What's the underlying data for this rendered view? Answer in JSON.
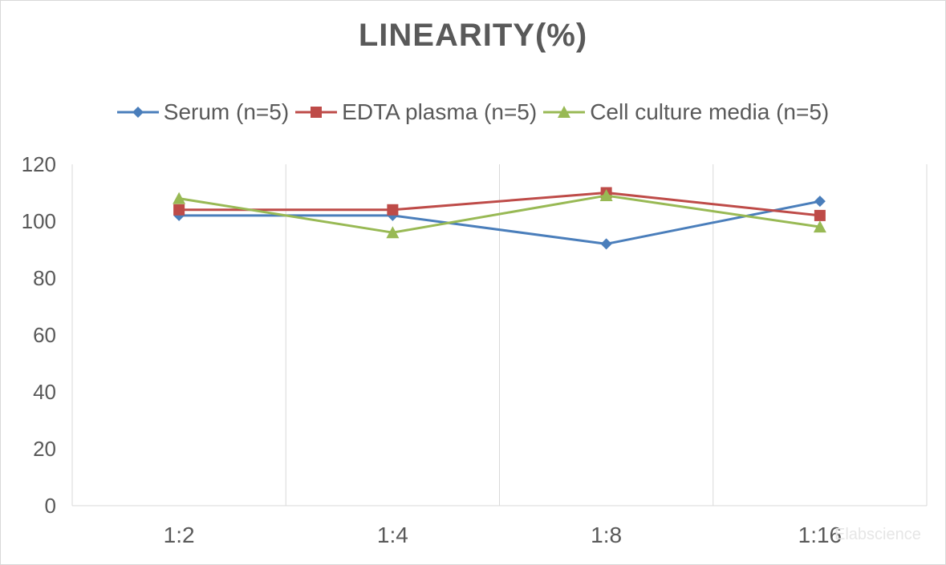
{
  "chart_data": {
    "type": "line",
    "title": "LINEARITY(%)",
    "categories": [
      "1:2",
      "1:4",
      "1:8",
      "1:16"
    ],
    "ylim": [
      0,
      120
    ],
    "yticks": [
      0,
      20,
      40,
      60,
      80,
      100,
      120
    ],
    "grid": "vertical",
    "legend_position": "top",
    "series": [
      {
        "name": "Serum (n=5)",
        "color": "#4a7ebb",
        "marker": "diamond",
        "values": [
          102,
          102,
          92,
          107
        ]
      },
      {
        "name": "EDTA plasma (n=5)",
        "color": "#be4b48",
        "marker": "square",
        "values": [
          104,
          104,
          110,
          102
        ]
      },
      {
        "name": "Cell culture media (n=5)",
        "color": "#98b954",
        "marker": "triangle",
        "values": [
          108,
          96,
          109,
          98
        ]
      }
    ]
  },
  "watermark": "Elabscience"
}
